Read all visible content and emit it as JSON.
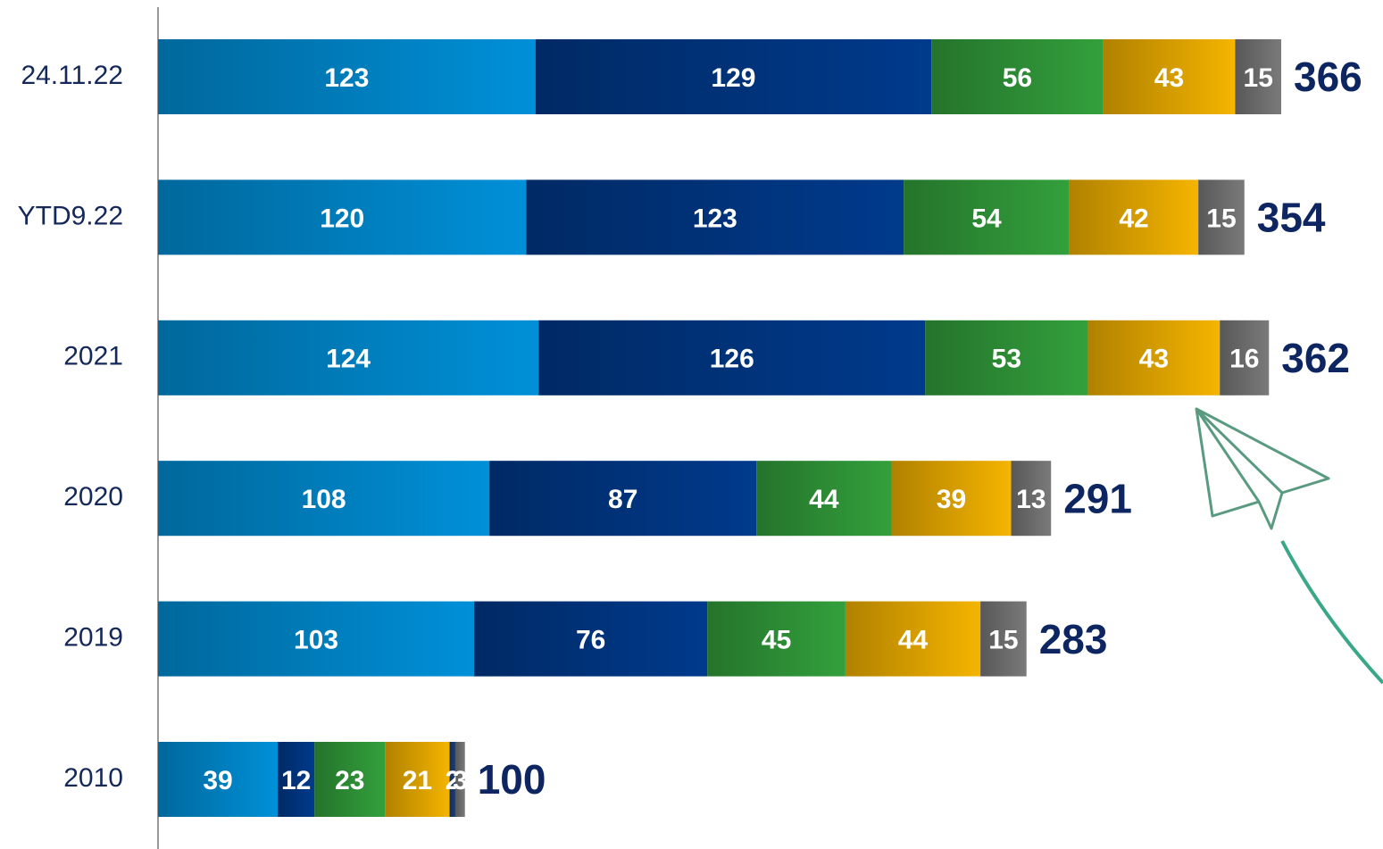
{
  "chart_data": {
    "type": "stacked-bar-horizontal",
    "categories": [
      "24.11.22",
      "YTD9.22",
      "2021",
      "2020",
      "2019",
      "2010"
    ],
    "series": [
      {
        "color": "#0090d8",
        "values": [
          123,
          120,
          124,
          108,
          103,
          39
        ]
      },
      {
        "color": "#003a8c",
        "values": [
          129,
          123,
          126,
          87,
          76,
          12
        ]
      },
      {
        "color": "#33a03c",
        "values": [
          56,
          54,
          53,
          44,
          45,
          23
        ]
      },
      {
        "color": "#f5b400",
        "values": [
          43,
          42,
          43,
          39,
          44,
          21
        ]
      },
      {
        "color": "#1d3f7a",
        "values": [
          null,
          null,
          null,
          null,
          null,
          2
        ]
      },
      {
        "color": "#7a7a7a",
        "values": [
          15,
          15,
          16,
          13,
          15,
          3
        ]
      }
    ],
    "totals": [
      366,
      354,
      362,
      291,
      283,
      100
    ]
  }
}
